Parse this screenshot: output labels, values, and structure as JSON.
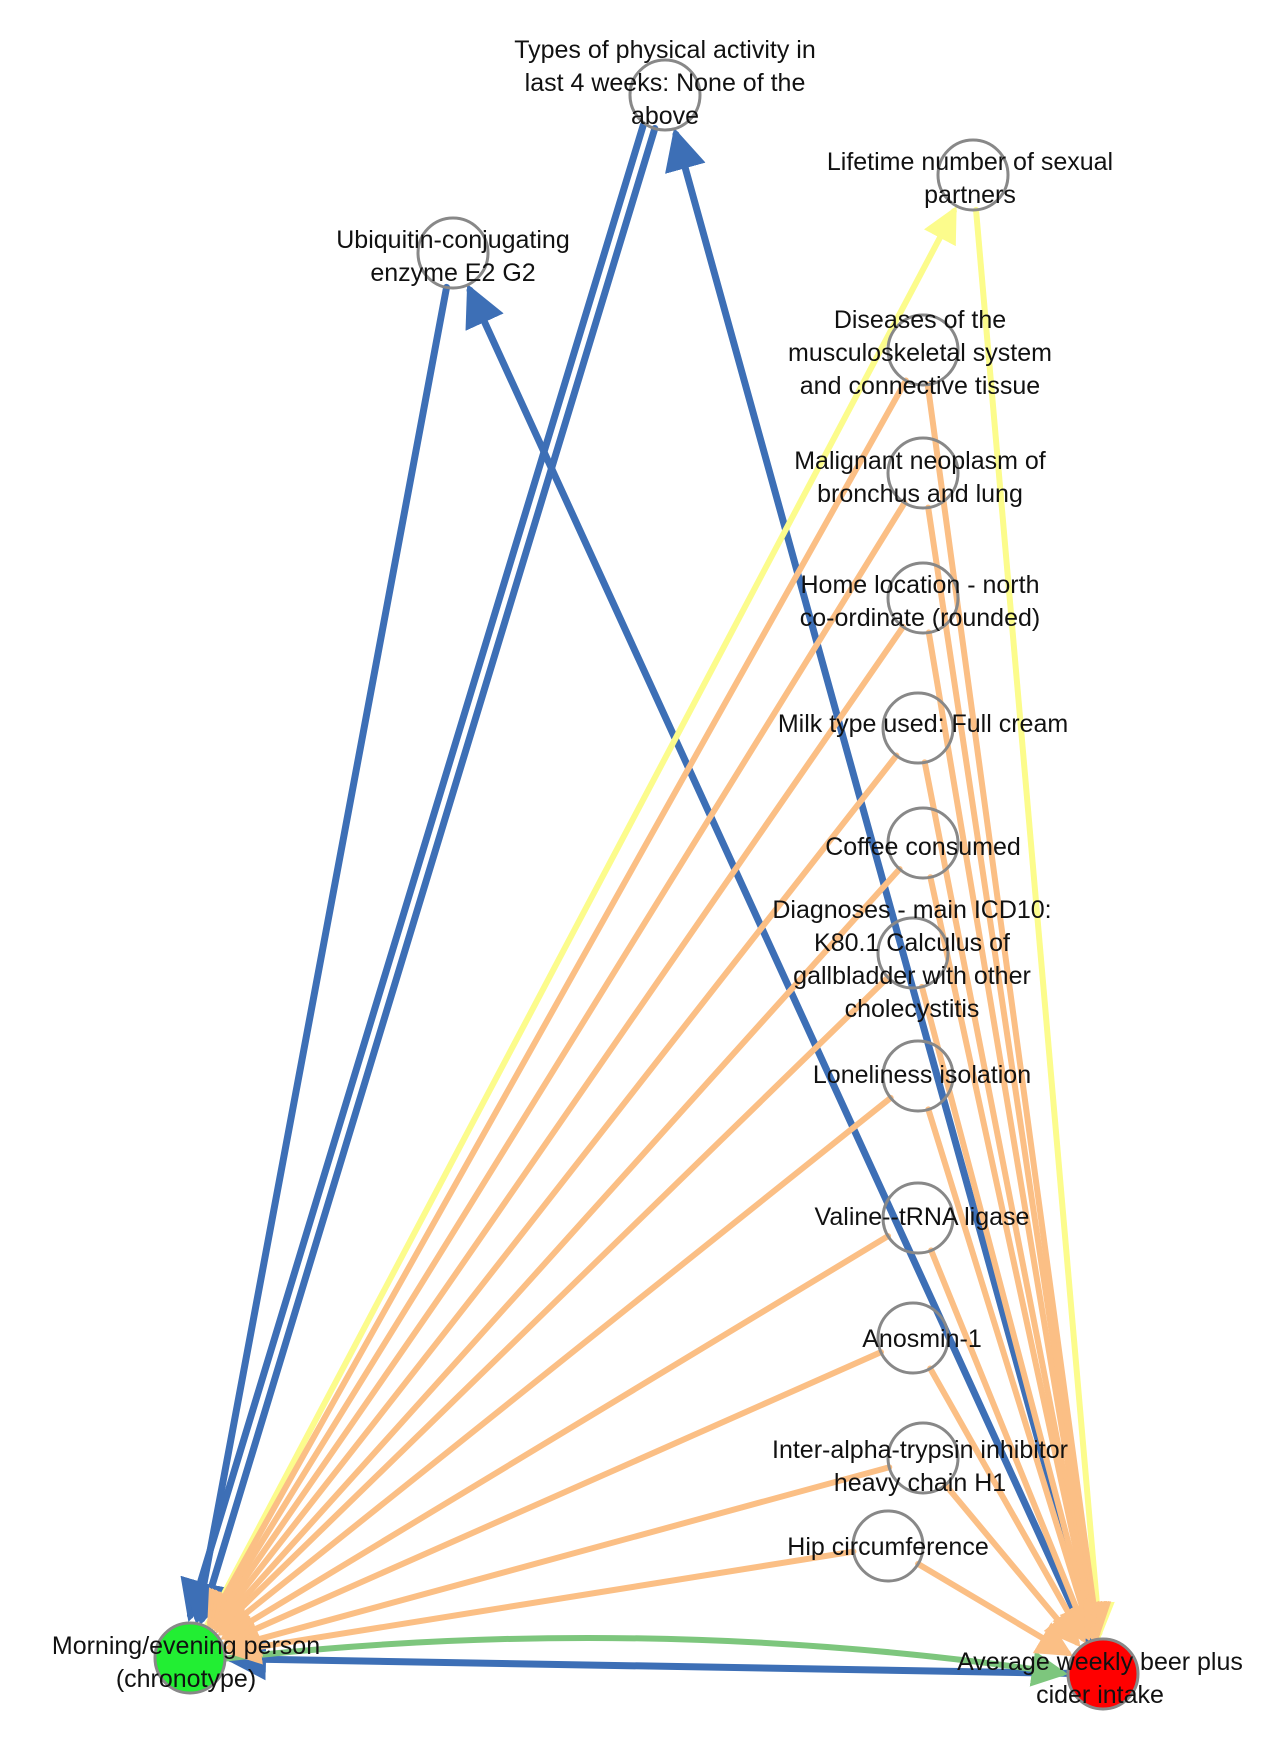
{
  "colors": {
    "blue": "#3d6fb6",
    "orange": "#fbbf85",
    "yellow": "#fcfc8c",
    "green": "#7dc67d",
    "node_stroke": "#888888",
    "source_fill": "#22ee33",
    "target_fill": "#ff0000"
  },
  "nodes": [
    {
      "id": "activity",
      "lines": [
        "Types of physical activity in",
        "last 4 weeks: None of the",
        "above"
      ],
      "fill": "#ffffff"
    },
    {
      "id": "partners",
      "lines": [
        "Lifetime number of sexual",
        "partners"
      ],
      "fill": "#ffffff"
    },
    {
      "id": "ube2g2",
      "lines": [
        "Ubiquitin-conjugating",
        "enzyme E2 G2"
      ],
      "fill": "#ffffff"
    },
    {
      "id": "musculo",
      "lines": [
        "Diseases of the",
        "musculoskeletal system",
        "and connective tissue"
      ],
      "fill": "#ffffff"
    },
    {
      "id": "lung",
      "lines": [
        "Malignant neoplasm of",
        "bronchus and lung"
      ],
      "fill": "#ffffff"
    },
    {
      "id": "north",
      "lines": [
        "Home location - north",
        "co-ordinate (rounded)"
      ],
      "fill": "#ffffff"
    },
    {
      "id": "milk",
      "lines": [
        "Milk type used: Full cream"
      ],
      "fill": "#ffffff"
    },
    {
      "id": "coffee",
      "lines": [
        "Coffee consumed"
      ],
      "fill": "#ffffff"
    },
    {
      "id": "k801",
      "lines": [
        "Diagnoses - main ICD10:",
        "K80.1 Calculus of",
        "gallbladder with other",
        "cholecystitis"
      ],
      "fill": "#ffffff"
    },
    {
      "id": "lonely",
      "lines": [
        "Loneliness  isolation"
      ],
      "fill": "#ffffff"
    },
    {
      "id": "valine",
      "lines": [
        "Valine--tRNA ligase"
      ],
      "fill": "#ffffff"
    },
    {
      "id": "anosmin",
      "lines": [
        "Anosmin-1"
      ],
      "fill": "#ffffff"
    },
    {
      "id": "itih1",
      "lines": [
        "Inter-alpha-trypsin inhibitor",
        "heavy chain H1"
      ],
      "fill": "#ffffff"
    },
    {
      "id": "hip",
      "lines": [
        "Hip circumference"
      ],
      "fill": "#ffffff"
    },
    {
      "id": "chrono",
      "lines": [
        "Morning/evening person",
        "(chronotype)"
      ],
      "fill": "#22ee33"
    },
    {
      "id": "beer",
      "lines": [
        "Average weekly beer plus",
        "cider intake"
      ],
      "fill": "#ff0000"
    }
  ],
  "edges": [
    {
      "from": "activity",
      "to": "chrono",
      "color": "blue"
    },
    {
      "from": "activity",
      "to": "chrono",
      "color": "blue",
      "offset": 1
    },
    {
      "from": "beer",
      "to": "activity",
      "color": "blue"
    },
    {
      "from": "ube2g2",
      "to": "chrono",
      "color": "blue"
    },
    {
      "from": "beer",
      "to": "ube2g2",
      "color": "blue"
    },
    {
      "from": "beer",
      "to": "chrono",
      "color": "blue"
    },
    {
      "from": "chrono",
      "to": "beer",
      "color": "green",
      "curve": true
    },
    {
      "from": "chrono",
      "to": "partners",
      "color": "yellow"
    },
    {
      "from": "partners",
      "to": "beer",
      "color": "yellow"
    },
    {
      "from": "musculo",
      "to": "chrono",
      "color": "orange"
    },
    {
      "from": "musculo",
      "to": "beer",
      "color": "orange"
    },
    {
      "from": "lung",
      "to": "chrono",
      "color": "orange"
    },
    {
      "from": "lung",
      "to": "beer",
      "color": "orange"
    },
    {
      "from": "north",
      "to": "chrono",
      "color": "orange"
    },
    {
      "from": "north",
      "to": "beer",
      "color": "orange"
    },
    {
      "from": "milk",
      "to": "chrono",
      "color": "orange"
    },
    {
      "from": "milk",
      "to": "beer",
      "color": "orange"
    },
    {
      "from": "coffee",
      "to": "chrono",
      "color": "orange"
    },
    {
      "from": "coffee",
      "to": "beer",
      "color": "orange"
    },
    {
      "from": "k801",
      "to": "chrono",
      "color": "orange"
    },
    {
      "from": "k801",
      "to": "beer",
      "color": "orange"
    },
    {
      "from": "lonely",
      "to": "chrono",
      "color": "orange"
    },
    {
      "from": "lonely",
      "to": "beer",
      "color": "orange"
    },
    {
      "from": "valine",
      "to": "chrono",
      "color": "orange"
    },
    {
      "from": "valine",
      "to": "beer",
      "color": "orange"
    },
    {
      "from": "anosmin",
      "to": "chrono",
      "color": "orange"
    },
    {
      "from": "anosmin",
      "to": "beer",
      "color": "orange"
    },
    {
      "from": "itih1",
      "to": "chrono",
      "color": "orange"
    },
    {
      "from": "itih1",
      "to": "beer",
      "color": "orange"
    },
    {
      "from": "hip",
      "to": "chrono",
      "color": "orange"
    },
    {
      "from": "hip",
      "to": "beer",
      "color": "orange"
    }
  ]
}
